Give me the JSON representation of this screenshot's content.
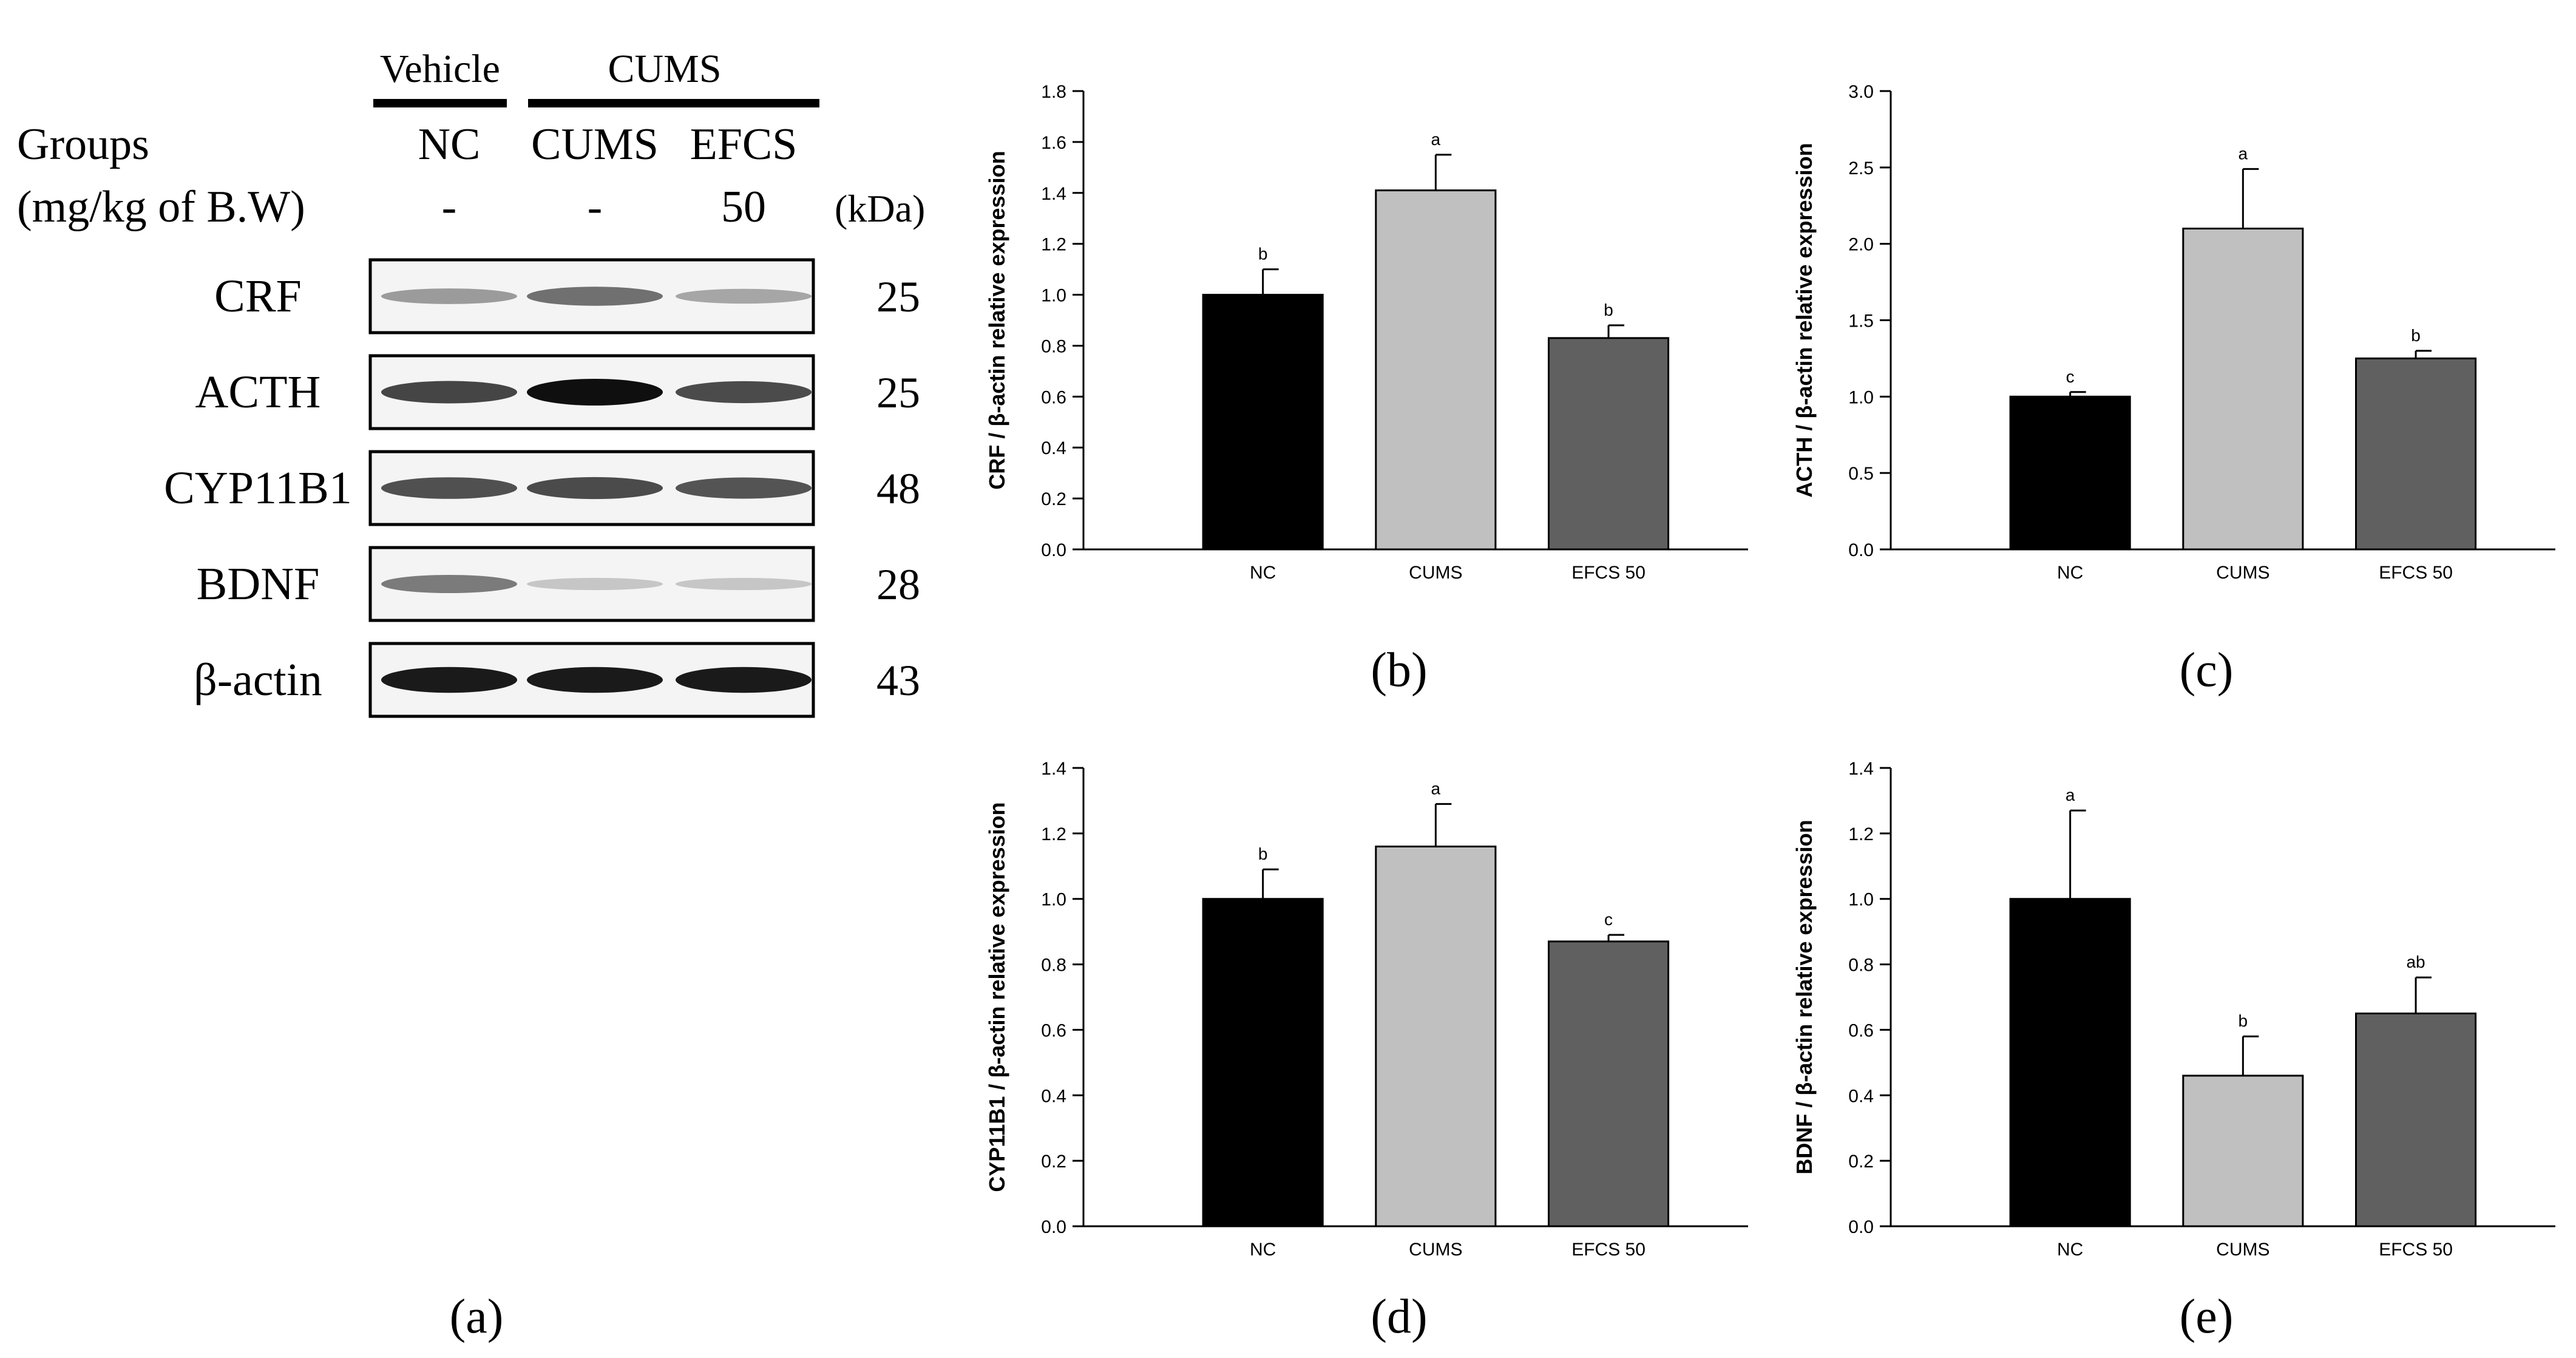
{
  "figure": {
    "panel_labels": [
      "(a)",
      "(b)",
      "(c)",
      "(d)",
      "(e)"
    ]
  },
  "blot": {
    "vehicle_label": "Vehicle",
    "cums_label": "CUMS",
    "groups_label": "Groups",
    "dose_label": "(mg/kg of B.W)",
    "kda_label": "(kDa)",
    "lanes": [
      {
        "name": "NC",
        "dose": "-"
      },
      {
        "name": "CUMS",
        "dose": "-"
      },
      {
        "name": "EFCS",
        "dose": "50"
      }
    ],
    "proteins": [
      {
        "name": "CRF",
        "kda": "25",
        "intensity": [
          0.35,
          0.55,
          0.3
        ]
      },
      {
        "name": "ACTH",
        "kda": "25",
        "intensity": [
          0.75,
          1.0,
          0.72
        ]
      },
      {
        "name": "CYP11B1",
        "kda": "48",
        "intensity": [
          0.7,
          0.72,
          0.68
        ]
      },
      {
        "name": "BDNF",
        "kda": "28",
        "intensity": [
          0.5,
          0.15,
          0.15
        ]
      },
      {
        "name": "β-actin",
        "kda": "43",
        "intensity": [
          0.95,
          0.95,
          0.95
        ]
      }
    ]
  },
  "colors": {
    "NC": "#000000",
    "CUMS": "#c0c0c0",
    "EFCS 50": "#606060"
  },
  "chart_data": [
    {
      "panel": "(b)",
      "type": "bar",
      "categories": [
        "NC",
        "CUMS",
        "EFCS 50"
      ],
      "values": [
        1.0,
        1.41,
        0.83
      ],
      "errors": [
        0.1,
        0.14,
        0.05
      ],
      "letters": [
        "b",
        "a",
        "b"
      ],
      "ylabel": "CRF / β-actin relative expression",
      "ylim": [
        0,
        1.8
      ],
      "ytick_step": 0.2,
      "yticks": [
        "0.0",
        "0.2",
        "0.4",
        "0.6",
        "0.8",
        "1.0",
        "1.2",
        "1.4",
        "1.6",
        "1.8"
      ]
    },
    {
      "panel": "(c)",
      "type": "bar",
      "categories": [
        "NC",
        "CUMS",
        "EFCS 50"
      ],
      "values": [
        1.0,
        2.1,
        1.25
      ],
      "errors": [
        0.03,
        0.39,
        0.05
      ],
      "letters": [
        "c",
        "a",
        "b"
      ],
      "ylabel": "ACTH / β-actin relative expression",
      "ylim": [
        0,
        3.0
      ],
      "ytick_step": 0.5,
      "yticks": [
        "0.0",
        "0.5",
        "1.0",
        "1.5",
        "2.0",
        "2.5",
        "3.0"
      ]
    },
    {
      "panel": "(d)",
      "type": "bar",
      "categories": [
        "NC",
        "CUMS",
        "EFCS 50"
      ],
      "values": [
        1.0,
        1.16,
        0.87
      ],
      "errors": [
        0.09,
        0.13,
        0.02
      ],
      "letters": [
        "b",
        "a",
        "c"
      ],
      "ylabel": "CYP11B1 / β-actin relative expression",
      "ylim": [
        0,
        1.4
      ],
      "ytick_step": 0.2,
      "yticks": [
        "0.0",
        "0.2",
        "0.4",
        "0.6",
        "0.8",
        "1.0",
        "1.2",
        "1.4"
      ]
    },
    {
      "panel": "(e)",
      "type": "bar",
      "categories": [
        "NC",
        "CUMS",
        "EFCS 50"
      ],
      "values": [
        1.0,
        0.46,
        0.65
      ],
      "errors": [
        0.27,
        0.12,
        0.11
      ],
      "letters": [
        "a",
        "b",
        "ab"
      ],
      "ylabel": "BDNF / β-actin relative expression",
      "ylim": [
        0,
        1.4
      ],
      "ytick_step": 0.2,
      "yticks": [
        "0.0",
        "0.2",
        "0.4",
        "0.6",
        "0.8",
        "1.0",
        "1.2",
        "1.4"
      ]
    }
  ]
}
